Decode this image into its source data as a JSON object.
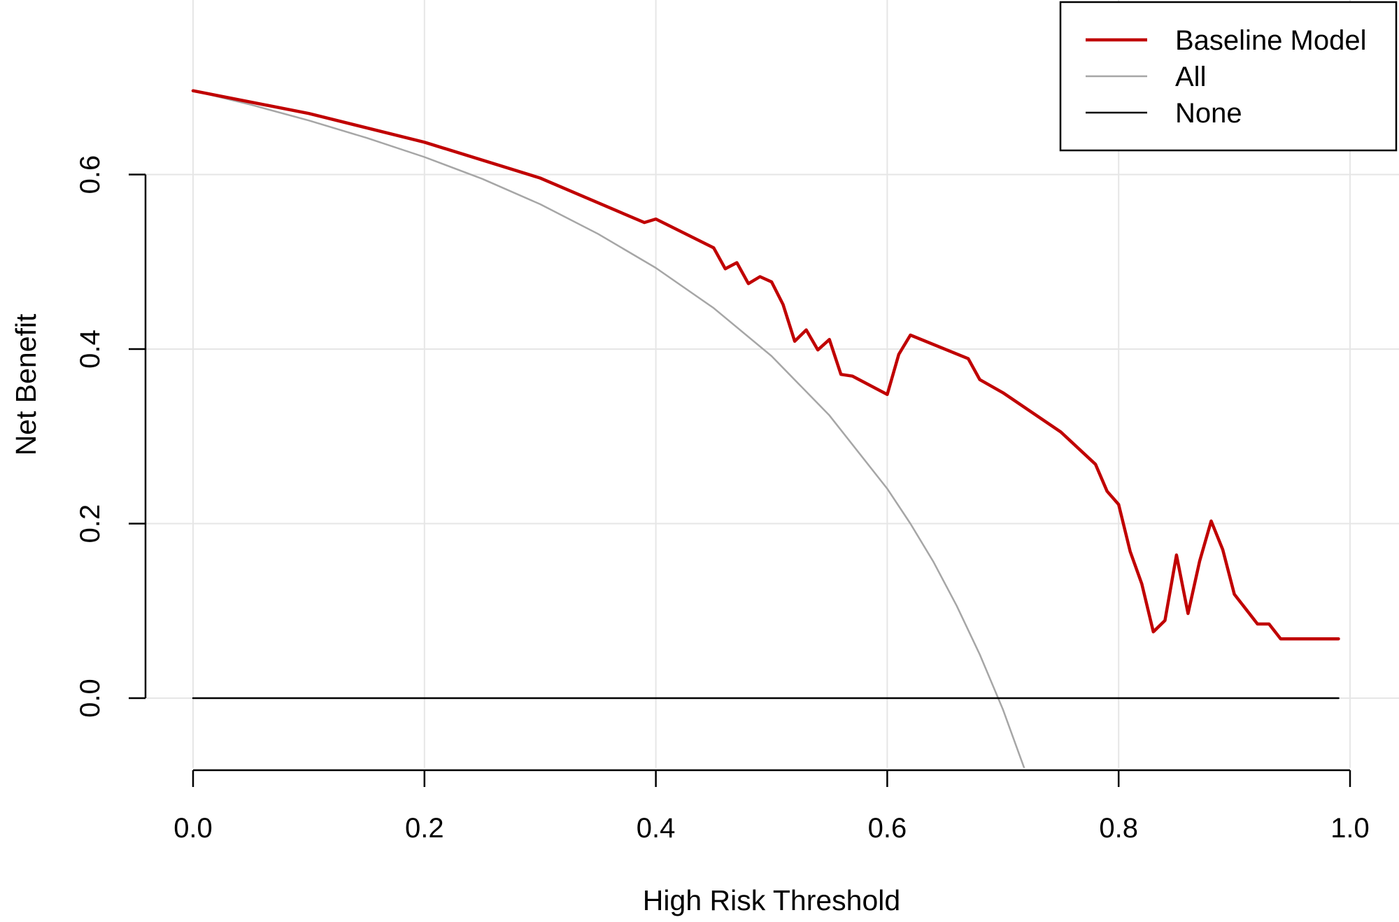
{
  "chart_data": {
    "type": "line",
    "title": "",
    "xlabel": "High Risk Threshold",
    "ylabel": "Net Benefit",
    "xlim": [
      0.0,
      1.0
    ],
    "ylim": [
      -0.08,
      0.7
    ],
    "grid": true,
    "legend_position": "top-right",
    "x_ticks": [
      0.0,
      0.2,
      0.4,
      0.6,
      0.8,
      1.0
    ],
    "x_tick_labels": [
      "0.0",
      "0.2",
      "0.4",
      "0.6",
      "0.8",
      "1.0"
    ],
    "y_ticks": [
      0.0,
      0.2,
      0.4,
      0.6
    ],
    "y_tick_labels": [
      "0.0",
      "0.2",
      "0.4",
      "0.6"
    ],
    "series": [
      {
        "name": "Baseline Model",
        "color": "#c00000",
        "x": [
          0.0,
          0.1,
          0.2,
          0.3,
          0.39,
          0.4,
          0.45,
          0.46,
          0.47,
          0.48,
          0.49,
          0.5,
          0.51,
          0.52,
          0.53,
          0.54,
          0.55,
          0.56,
          0.57,
          0.6,
          0.61,
          0.62,
          0.67,
          0.68,
          0.7,
          0.75,
          0.78,
          0.79,
          0.8,
          0.81,
          0.82,
          0.83,
          0.84,
          0.85,
          0.86,
          0.87,
          0.88,
          0.89,
          0.9,
          0.92,
          0.93,
          0.94,
          0.99
        ],
        "y": [
          0.696,
          0.67,
          0.637,
          0.596,
          0.545,
          0.549,
          0.516,
          0.492,
          0.499,
          0.475,
          0.483,
          0.477,
          0.451,
          0.409,
          0.422,
          0.399,
          0.411,
          0.371,
          0.369,
          0.348,
          0.394,
          0.416,
          0.389,
          0.365,
          0.35,
          0.305,
          0.268,
          0.237,
          0.222,
          0.168,
          0.131,
          0.076,
          0.089,
          0.164,
          0.097,
          0.157,
          0.203,
          0.17,
          0.119,
          0.085,
          0.085,
          0.068,
          0.068
        ]
      },
      {
        "name": "All",
        "color": "#a6a6a6",
        "prevalence": 0.696,
        "x": [
          0.0,
          0.05,
          0.1,
          0.15,
          0.2,
          0.25,
          0.3,
          0.35,
          0.4,
          0.45,
          0.5,
          0.55,
          0.6,
          0.62,
          0.64,
          0.66,
          0.68,
          0.7,
          0.72
        ],
        "y": [
          0.696,
          0.68,
          0.662,
          0.642,
          0.62,
          0.595,
          0.566,
          0.532,
          0.493,
          0.447,
          0.392,
          0.324,
          0.24,
          0.2,
          0.156,
          0.106,
          0.05,
          -0.013,
          -0.086
        ]
      },
      {
        "name": "None",
        "color": "#000000",
        "x": [
          0.0,
          0.99
        ],
        "y": [
          0.0,
          0.0
        ]
      }
    ]
  }
}
